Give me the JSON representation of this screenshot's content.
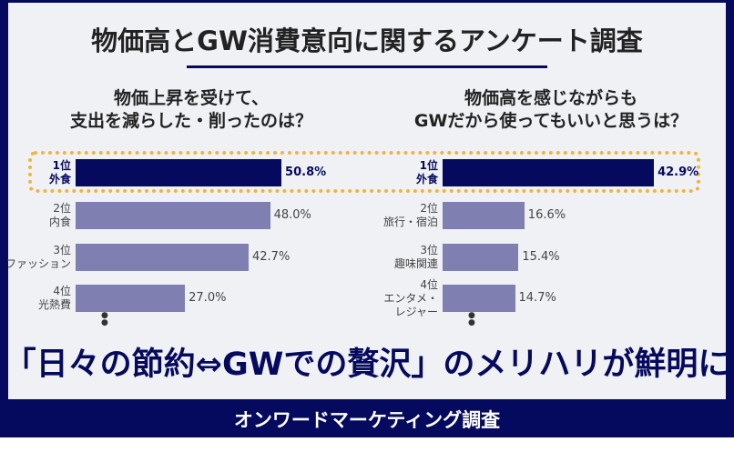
{
  "title": "物価高とGW消費意向に関するアンケート調査",
  "headline": "「日々の節約⇔GWでの贅沢」のメリハリが鮮明に",
  "footer": "オンワードマーケティング調査",
  "colors": {
    "navy": "#050a5e",
    "bar": "#7f7fb2",
    "highlight": "#f0b43c",
    "background": "#f0f1f5"
  },
  "chart_data": [
    {
      "type": "bar",
      "orientation": "horizontal",
      "title": "物価上昇を受けて、\n支出を減らした・削ったのは？",
      "categories": [
        [
          "1位",
          "外食"
        ],
        [
          "2位",
          "内食"
        ],
        [
          "3位",
          "ファッション"
        ],
        [
          "4位",
          "光熱費"
        ]
      ],
      "values": [
        50.8,
        48.0,
        42.7,
        27.0
      ],
      "labels": [
        "50.8%",
        "48.0%",
        "42.7%",
        "27.0%"
      ],
      "highlighted": 0,
      "more": "⋮"
    },
    {
      "type": "bar",
      "orientation": "horizontal",
      "title": "物価高を感じながらも\nGWだから使ってもいいと思うは？",
      "categories": [
        [
          "1位",
          "外食"
        ],
        [
          "2位",
          "旅行・宿泊"
        ],
        [
          "3位",
          "趣味関連"
        ],
        [
          "4位",
          "エンタメ・",
          "レジャー"
        ]
      ],
      "values": [
        42.9,
        16.6,
        15.4,
        14.7
      ],
      "labels": [
        "42.9%",
        "16.6%",
        "15.4%",
        "14.7%"
      ],
      "highlighted": 0,
      "more": "⋮"
    }
  ]
}
